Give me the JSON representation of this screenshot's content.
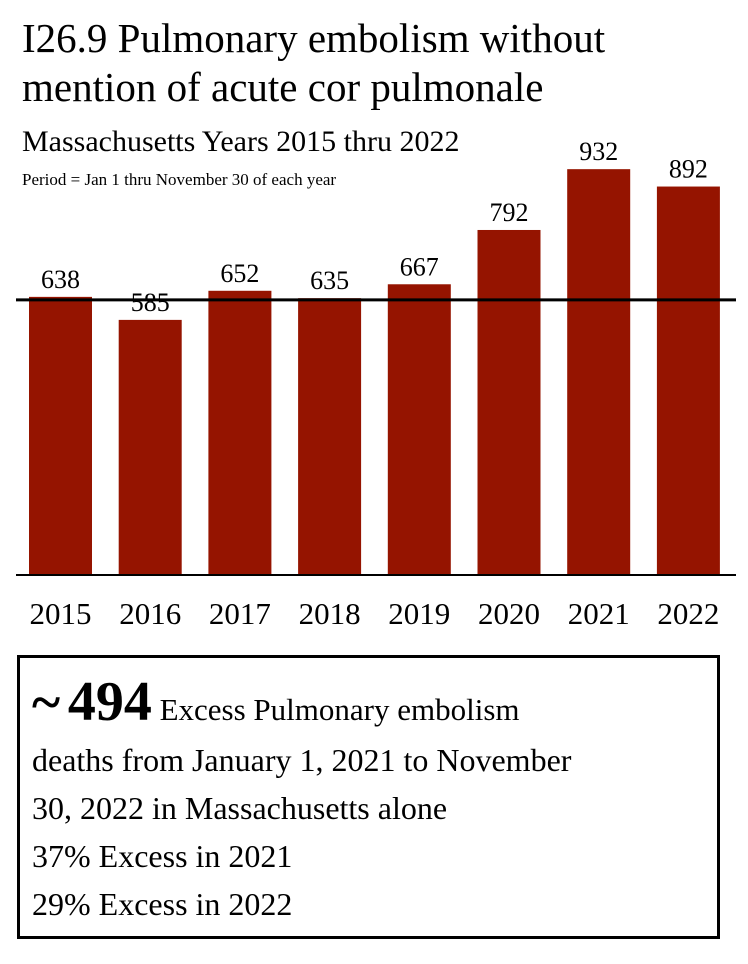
{
  "title": "I26.9 Pulmonary embolism without mention of acute cor pulmonale",
  "subtitle": "Massachusetts Years 2015 thru 2022",
  "note": "Period = Jan 1 thru November 30 of each year",
  "chart_data": {
    "type": "bar",
    "categories": [
      "2015",
      "2016",
      "2017",
      "2018",
      "2019",
      "2020",
      "2021",
      "2022"
    ],
    "values": [
      638,
      585,
      652,
      635,
      667,
      792,
      932,
      892
    ],
    "data_labels": [
      "638",
      "585",
      "652",
      "635",
      "667",
      "792",
      "932",
      "892"
    ],
    "ylim": [
      0,
      960
    ],
    "reference_line": 631,
    "grid": false,
    "colors": {
      "bar": "#951400",
      "reference_line": "#000000",
      "axis": "#000000"
    }
  },
  "summary": {
    "prefix": "~",
    "number": "494",
    "head_text": "Excess Pulmonary embolism",
    "lines": [
      "deaths from January 1, 2021 to November",
      "30, 2022 in Massachusetts alone",
      "37% Excess in 2021",
      "29% Excess in 2022"
    ]
  }
}
